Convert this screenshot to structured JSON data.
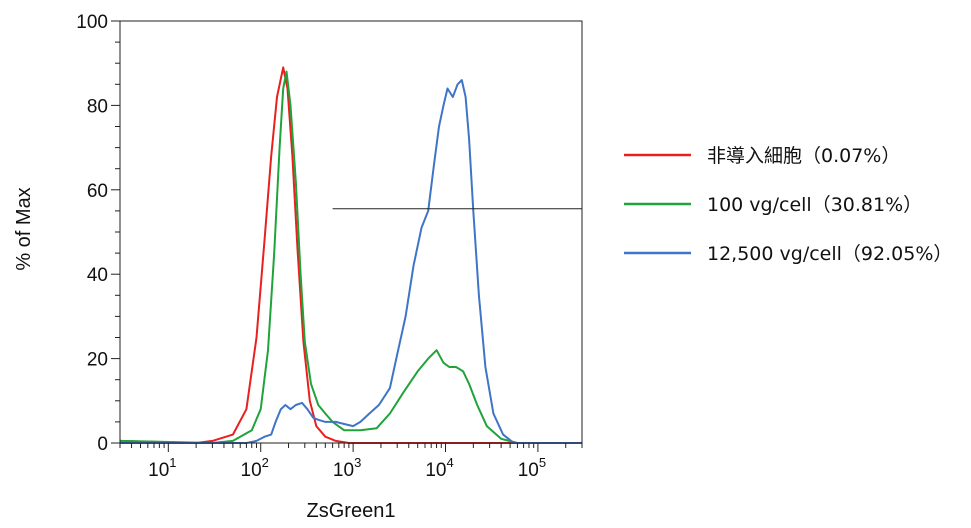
{
  "chart_data": {
    "type": "line",
    "title": "",
    "xlabel": "ZsGreen1",
    "ylabel": "% of Max",
    "x_scale": "log",
    "xlim": [
      3,
      300000
    ],
    "ylim": [
      0,
      100
    ],
    "grid": false,
    "legend_position": "right",
    "y_ticks": [
      "0",
      "20",
      "40",
      "60",
      "80",
      "100"
    ],
    "y_tick_values": [
      0,
      20,
      40,
      60,
      80,
      100
    ],
    "x_ticks": [
      {
        "base": "10",
        "exp": "1",
        "value": 10
      },
      {
        "base": "10",
        "exp": "2",
        "value": 100
      },
      {
        "base": "10",
        "exp": "3",
        "value": 1000
      },
      {
        "base": "10",
        "exp": "4",
        "value": 10000
      },
      {
        "base": "10",
        "exp": "5",
        "value": 100000
      }
    ],
    "gate": {
      "x_start": 600,
      "x_end": 300000,
      "y": 55.5
    },
    "series": [
      {
        "name": "非導入細胞（0.07%）",
        "color": "#e8201f",
        "points": [
          [
            3,
            0.5
          ],
          [
            20,
            0
          ],
          [
            30,
            0.5
          ],
          [
            50,
            2
          ],
          [
            70,
            8
          ],
          [
            90,
            25
          ],
          [
            110,
            48
          ],
          [
            130,
            68
          ],
          [
            150,
            82
          ],
          [
            175,
            89
          ],
          [
            195,
            84
          ],
          [
            220,
            68
          ],
          [
            250,
            46
          ],
          [
            290,
            24
          ],
          [
            340,
            10
          ],
          [
            400,
            4
          ],
          [
            500,
            1.5
          ],
          [
            650,
            0.5
          ],
          [
            900,
            0
          ],
          [
            300000,
            0
          ]
        ]
      },
      {
        "name": "100 vg/cell（30.81%）",
        "color": "#20a33a",
        "points": [
          [
            3,
            0.5
          ],
          [
            30,
            0
          ],
          [
            50,
            0.5
          ],
          [
            80,
            3
          ],
          [
            100,
            8
          ],
          [
            120,
            22
          ],
          [
            140,
            45
          ],
          [
            160,
            70
          ],
          [
            175,
            84
          ],
          [
            190,
            88
          ],
          [
            210,
            80
          ],
          [
            240,
            62
          ],
          [
            270,
            40
          ],
          [
            300,
            24
          ],
          [
            350,
            14
          ],
          [
            420,
            9
          ],
          [
            500,
            7
          ],
          [
            600,
            5
          ],
          [
            800,
            3
          ],
          [
            1200,
            3
          ],
          [
            1800,
            3.5
          ],
          [
            2500,
            7
          ],
          [
            3500,
            12
          ],
          [
            5000,
            17
          ],
          [
            6500,
            20
          ],
          [
            8000,
            22
          ],
          [
            9500,
            19
          ],
          [
            11000,
            18
          ],
          [
            13000,
            18
          ],
          [
            15500,
            17
          ],
          [
            18000,
            14
          ],
          [
            22000,
            9
          ],
          [
            28000,
            4
          ],
          [
            40000,
            1
          ],
          [
            60000,
            0
          ],
          [
            300000,
            0
          ]
        ]
      },
      {
        "name": "12,500 vg/cell（92.05%）",
        "color": "#3f74c6",
        "points": [
          [
            3,
            0
          ],
          [
            70,
            0
          ],
          [
            90,
            0.5
          ],
          [
            110,
            1.5
          ],
          [
            130,
            2
          ],
          [
            145,
            5
          ],
          [
            165,
            8
          ],
          [
            185,
            9
          ],
          [
            210,
            8
          ],
          [
            240,
            9
          ],
          [
            280,
            9.5
          ],
          [
            320,
            8
          ],
          [
            370,
            6
          ],
          [
            420,
            5.5
          ],
          [
            500,
            5
          ],
          [
            650,
            5
          ],
          [
            800,
            4.5
          ],
          [
            1000,
            4
          ],
          [
            1200,
            5
          ],
          [
            1500,
            7
          ],
          [
            1900,
            9
          ],
          [
            2500,
            13
          ],
          [
            3000,
            21
          ],
          [
            3700,
            30
          ],
          [
            4500,
            42
          ],
          [
            5500,
            51
          ],
          [
            6500,
            55
          ],
          [
            7500,
            66
          ],
          [
            8500,
            75
          ],
          [
            9500,
            80
          ],
          [
            10500,
            84
          ],
          [
            12000,
            82
          ],
          [
            13500,
            85
          ],
          [
            15000,
            86
          ],
          [
            16500,
            82
          ],
          [
            18000,
            72
          ],
          [
            20000,
            55
          ],
          [
            23000,
            35
          ],
          [
            27000,
            18
          ],
          [
            33000,
            7
          ],
          [
            42000,
            2
          ],
          [
            55000,
            0
          ],
          [
            300000,
            0
          ]
        ]
      }
    ]
  }
}
